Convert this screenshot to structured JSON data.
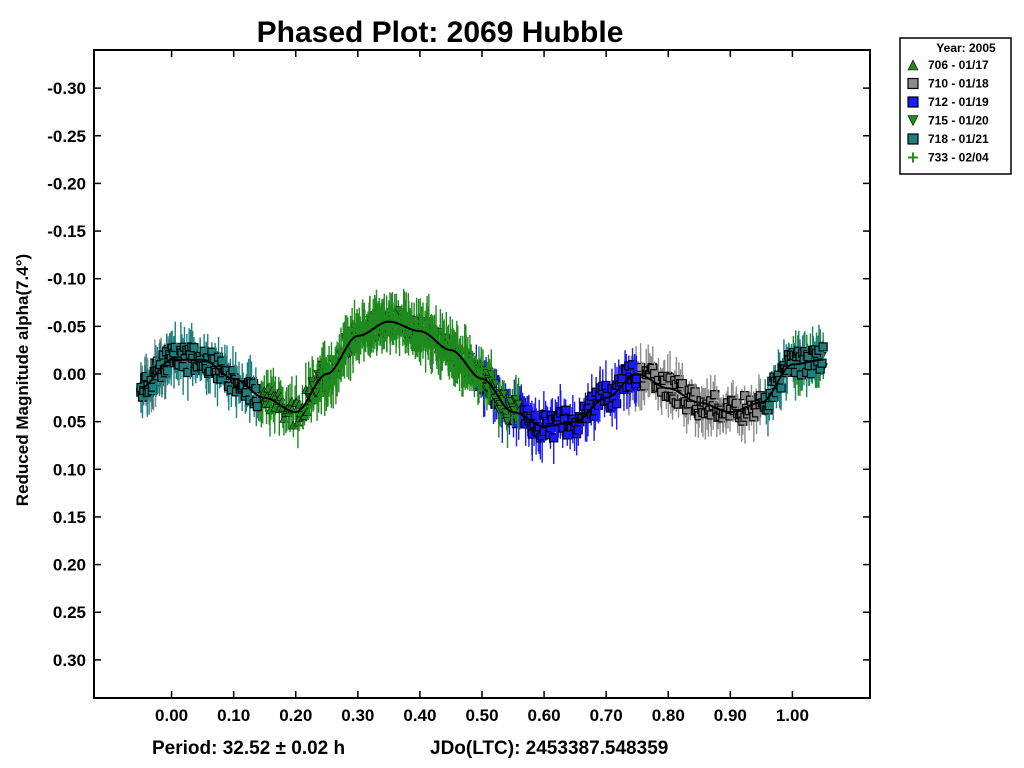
{
  "chart_data": {
    "type": "scatter",
    "title": "Phased Plot: 2069 Hubble",
    "xlabel": "",
    "ylabel": "Reduced Magnitude alpha(7.4°)",
    "x_ticks": [
      "0.00",
      "0.10",
      "0.20",
      "0.30",
      "0.40",
      "0.50",
      "0.60",
      "0.70",
      "0.80",
      "0.90",
      "1.00"
    ],
    "y_ticks": [
      "-0.30",
      "-0.25",
      "-0.20",
      "-0.15",
      "-0.10",
      "-0.05",
      "0.00",
      "0.05",
      "0.10",
      "0.15",
      "0.20",
      "0.25",
      "0.30"
    ],
    "xlim": [
      -0.125,
      1.125
    ],
    "ylim": [
      -0.34,
      0.34
    ],
    "y_inverted": true,
    "footer": {
      "period": "Period: 32.52 ± 0.02 h",
      "epoch": "JDo(LTC): 2453387.548359"
    },
    "legend": {
      "title": "Year: 2005",
      "placement": "outside top-right",
      "entries": [
        {
          "label": "706 - 01/17",
          "marker": "triangle-up",
          "color": "#1f8a1f"
        },
        {
          "label": "710 - 01/18",
          "marker": "square",
          "color": "#8c8c8c"
        },
        {
          "label": "712 - 01/19",
          "marker": "square",
          "color": "#1a1aff"
        },
        {
          "label": "715 - 01/20",
          "marker": "triangle-down",
          "color": "#1f8a1f"
        },
        {
          "label": "718 - 01/21",
          "marker": "square",
          "color": "#1e7f7f"
        },
        {
          "label": "733 - 02/04",
          "marker": "plus",
          "color": "#1f8a1f"
        }
      ]
    },
    "fit_curve": {
      "phase": [
        -0.05,
        0.0,
        0.05,
        0.1,
        0.15,
        0.2,
        0.25,
        0.3,
        0.35,
        0.4,
        0.45,
        0.5,
        0.55,
        0.6,
        0.65,
        0.7,
        0.75,
        0.8,
        0.85,
        0.9,
        0.95,
        1.0,
        1.05
      ],
      "mag": [
        0.015,
        -0.015,
        -0.015,
        0.005,
        0.025,
        0.04,
        0.0,
        -0.04,
        -0.055,
        -0.045,
        -0.025,
        0.005,
        0.04,
        0.055,
        0.05,
        0.025,
        0.0,
        0.015,
        0.03,
        0.04,
        0.03,
        -0.01,
        -0.015
      ]
    },
    "series": [
      {
        "name": "706 - 01/17",
        "ranges": [
          [
            0.14,
            0.25
          ]
        ]
      },
      {
        "name": "710 - 01/18",
        "ranges": [
          [
            -0.05,
            0.0
          ],
          [
            0.73,
            0.95
          ]
        ]
      },
      {
        "name": "712 - 01/19",
        "ranges": [
          [
            0.49,
            0.75
          ]
        ]
      },
      {
        "name": "715 - 01/20",
        "ranges": [
          [
            0.22,
            0.56
          ],
          [
            1.0,
            1.05
          ]
        ]
      },
      {
        "name": "718 - 01/21",
        "ranges": [
          [
            -0.05,
            0.14
          ],
          [
            0.95,
            1.05
          ]
        ]
      },
      {
        "name": "733 - 02/04",
        "ranges": [
          [
            0.24,
            0.5
          ]
        ]
      }
    ]
  }
}
